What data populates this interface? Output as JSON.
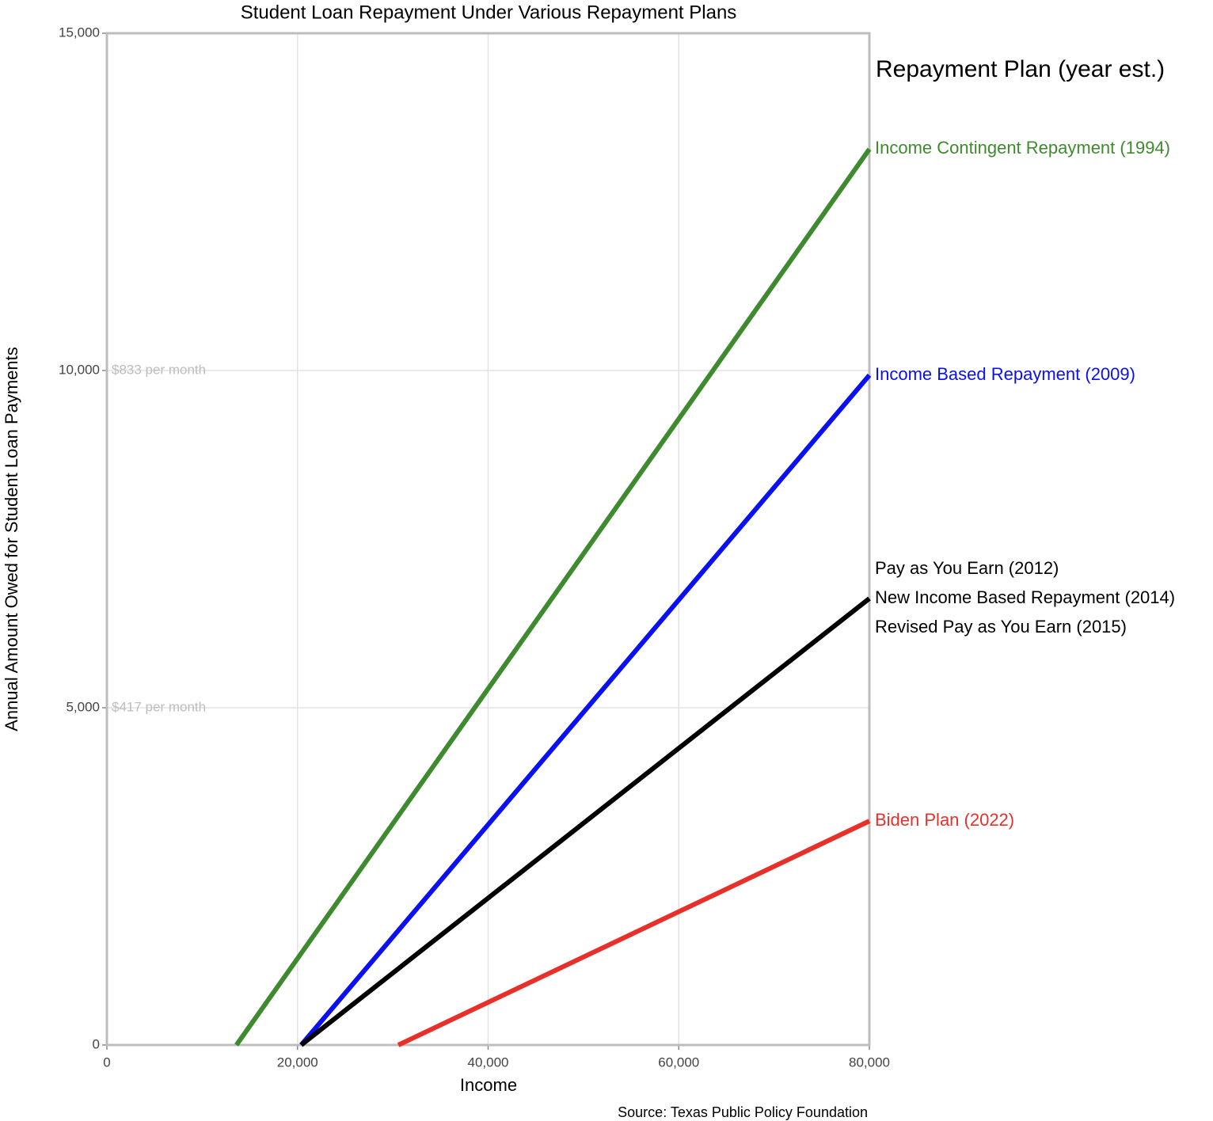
{
  "chart_data": {
    "type": "line",
    "title": "Student Loan Repayment Under Various Repayment Plans",
    "x_label": "Income",
    "y_label": "Annual Amount Owed for Student Loan Payments",
    "caption": "Source: Texas Public Policy Foundation",
    "legend_title": "Repayment Plan (year est.)",
    "legend_position": "right",
    "grid": true,
    "xlim": [
      0,
      80000
    ],
    "ylim": [
      0,
      15000
    ],
    "xticks": [
      0,
      {
        "value": 20000,
        "label": "20,000"
      },
      {
        "value": 40000,
        "label": "40,000"
      },
      {
        "value": 60000,
        "label": "60,000"
      },
      {
        "value": 80000,
        "label": "80,000"
      }
    ],
    "yticks": [
      0,
      {
        "value": 5000,
        "label": "5,000"
      },
      {
        "value": 10000,
        "label": "10,000"
      },
      {
        "value": 15000,
        "label": "15,000"
      }
    ],
    "annotations": [
      {
        "text": "$833 per month",
        "y": 10000
      },
      {
        "text": "$417 per month",
        "y": 5000
      }
    ],
    "series": [
      {
        "name": "Income Contingent Repayment (1994)",
        "labels": [
          "Income Contingent Repayment (1994)"
        ],
        "color": "#3f8a2f",
        "x": [
          13590,
          80000
        ],
        "values": [
          0,
          13282
        ]
      },
      {
        "name": "Income Based Repayment (2009)",
        "labels": [
          "Income Based Repayment (2009)"
        ],
        "color": "#0a10f0",
        "x": [
          20385,
          80000
        ],
        "values": [
          0,
          9930
        ]
      },
      {
        "name": "Pay as You Earn (2012) / New Income Based Repayment (2014) / Revised Pay as You Earn (2015)",
        "labels": [
          "Pay as You Earn (2012)",
          "New Income Based Repayment (2014)",
          "Revised Pay as You Earn (2015)"
        ],
        "color": "#000000",
        "x": [
          20385,
          80000
        ],
        "values": [
          0,
          6620
        ]
      },
      {
        "name": "Biden Plan (2022)",
        "labels": [
          "Biden Plan (2022)"
        ],
        "color": "#e8302a",
        "x": [
          30580,
          80000
        ],
        "values": [
          0,
          3320
        ]
      }
    ]
  }
}
